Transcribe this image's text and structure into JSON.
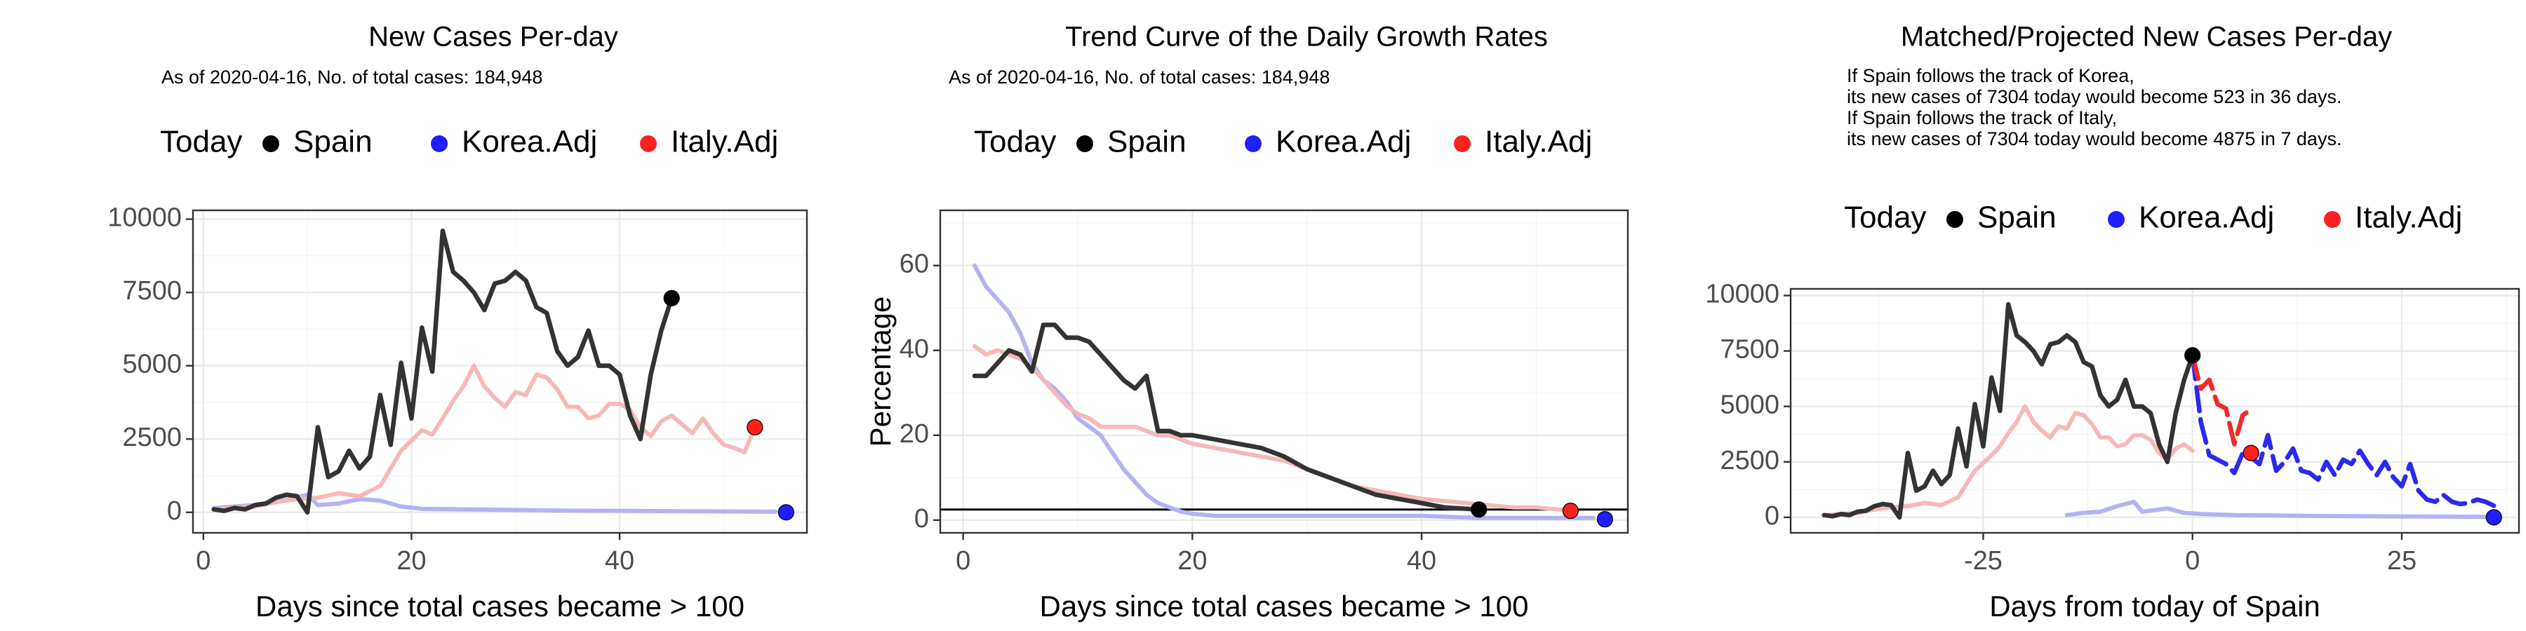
{
  "colors": {
    "spain": "#333333",
    "korea": "#2a2aef",
    "italy": "#ef2a2a",
    "korea_faint": "#b3b3f4",
    "italy_faint": "#f6b8b8",
    "korea_dot": "#1f1fff",
    "italy_dot": "#ff2020"
  },
  "legend": {
    "title": "Today",
    "items": [
      "Spain",
      "Korea.Adj",
      "Italy.Adj"
    ]
  },
  "chart_data": [
    {
      "type": "line",
      "title": "New Cases Per-day",
      "subtitle": "As of 2020-04-16, No. of total cases: 184,948",
      "xlabel": "Days since total cases became > 100",
      "ylabel": "",
      "xlim": [
        -1,
        58
      ],
      "ylim": [
        -700,
        10300
      ],
      "xticks": [
        0,
        20,
        40
      ],
      "yticks": [
        0,
        2500,
        5000,
        7500,
        10000
      ],
      "ytick_labels": [
        "0",
        "2500",
        "5000",
        "7500",
        "10000"
      ],
      "grid": true,
      "legend_position": "top",
      "series": [
        {
          "name": "Korea.Adj",
          "style": "faint",
          "x": [
            1,
            3,
            5,
            7,
            9,
            10,
            11,
            13,
            15,
            17,
            19,
            21,
            25,
            30,
            35,
            40,
            45,
            50,
            55
          ],
          "y": [
            150,
            200,
            250,
            350,
            500,
            600,
            250,
            300,
            450,
            400,
            200,
            120,
            100,
            80,
            60,
            50,
            40,
            30,
            20
          ]
        },
        {
          "name": "Italy.Adj",
          "style": "faint",
          "x": [
            1,
            3,
            5,
            7,
            9,
            11,
            13,
            15,
            17,
            19,
            21,
            22,
            23,
            24,
            25,
            26,
            27,
            28,
            29,
            30,
            31,
            32,
            33,
            34,
            35,
            36,
            37,
            38,
            39,
            40,
            41,
            42,
            43,
            44,
            45,
            46,
            47,
            48,
            49,
            50,
            51,
            52,
            53
          ],
          "y": [
            100,
            150,
            200,
            350,
            450,
            500,
            650,
            550,
            900,
            2100,
            2800,
            2650,
            3200,
            3800,
            4300,
            5000,
            4300,
            3900,
            3600,
            4100,
            4000,
            4700,
            4600,
            4200,
            3600,
            3600,
            3200,
            3300,
            3700,
            3700,
            3500,
            2900,
            2600,
            3100,
            3300,
            3000,
            2700,
            3200,
            2700,
            2300,
            2200,
            2050,
            2900
          ]
        },
        {
          "name": "Spain",
          "style": "solid",
          "x": [
            1,
            2,
            3,
            4,
            5,
            6,
            7,
            8,
            9,
            10,
            11,
            12,
            13,
            14,
            15,
            16,
            17,
            18,
            19,
            20,
            21,
            22,
            23,
            24,
            25,
            26,
            27,
            28,
            29,
            30,
            31,
            32,
            33,
            34,
            35,
            36,
            37,
            38,
            39,
            40,
            41,
            42,
            43,
            44,
            45
          ],
          "y": [
            100,
            50,
            150,
            100,
            250,
            300,
            500,
            600,
            550,
            0,
            2900,
            1200,
            1400,
            2100,
            1500,
            1900,
            4000,
            2300,
            5100,
            3200,
            6300,
            4800,
            9600,
            8200,
            7900,
            7500,
            6900,
            7800,
            7900,
            8200,
            7900,
            7000,
            6800,
            5500,
            5000,
            5300,
            6200,
            5000,
            5000,
            4700,
            3300,
            2500,
            4700,
            6200,
            7300
          ]
        }
      ],
      "today_points": [
        {
          "name": "Spain",
          "x": 45,
          "y": 7304
        },
        {
          "name": "Korea.Adj",
          "x": 56,
          "y": 0
        },
        {
          "name": "Italy.Adj",
          "x": 53,
          "y": 2900
        }
      ]
    },
    {
      "type": "line",
      "title": "Trend Curve of the Daily Growth Rates",
      "subtitle": "As of 2020-04-16, No. of total cases: 184,948",
      "xlabel": "Days since total cases became > 100",
      "ylabel": "Percentage",
      "xlim": [
        -2,
        58
      ],
      "ylim": [
        -3,
        73
      ],
      "xticks": [
        0,
        20,
        40
      ],
      "yticks": [
        0,
        20,
        40,
        60
      ],
      "ytick_labels": [
        "0",
        "20",
        "40",
        "60"
      ],
      "grid": true,
      "legend_position": "top",
      "reference_line_y": 2.5,
      "series": [
        {
          "name": "Korea.Adj",
          "style": "faint",
          "x": [
            1,
            2,
            3,
            4,
            5,
            6,
            7,
            8,
            9,
            10,
            11,
            12,
            13,
            14,
            15,
            16,
            17,
            18,
            19,
            20,
            22,
            25,
            30,
            35,
            40,
            45,
            50,
            55
          ],
          "y": [
            60,
            55,
            52,
            49,
            44,
            37,
            33,
            31,
            28,
            24,
            22,
            20,
            16,
            12,
            9,
            6,
            4,
            3,
            2,
            1.5,
            1,
            1,
            1,
            1,
            1,
            0.5,
            0.5,
            0.5
          ]
        },
        {
          "name": "Italy.Adj",
          "style": "faint",
          "x": [
            1,
            2,
            3,
            4,
            5,
            6,
            7,
            8,
            9,
            10,
            11,
            12,
            13,
            14,
            15,
            16,
            17,
            18,
            19,
            20,
            22,
            24,
            26,
            28,
            30,
            32,
            34,
            36,
            38,
            40,
            42,
            44,
            46,
            48,
            50,
            52,
            53
          ],
          "y": [
            41,
            39,
            40,
            39,
            38,
            36,
            33,
            30,
            27,
            25,
            24,
            22,
            22,
            22,
            22,
            21,
            20,
            20,
            19,
            18,
            17,
            16,
            15,
            14,
            12,
            10,
            8,
            7,
            6,
            5,
            4.5,
            4,
            3.5,
            3,
            3,
            2.5,
            2.3
          ]
        },
        {
          "name": "Spain",
          "style": "solid",
          "x": [
            1,
            2,
            3,
            4,
            5,
            6,
            7,
            8,
            9,
            10,
            11,
            12,
            13,
            14,
            15,
            16,
            17,
            18,
            19,
            20,
            22,
            24,
            26,
            28,
            30,
            32,
            34,
            36,
            38,
            40,
            42,
            45
          ],
          "y": [
            34,
            34,
            37,
            40,
            39,
            35,
            46,
            46,
            43,
            43,
            42,
            39,
            36,
            33,
            31,
            34,
            21,
            21,
            20,
            20,
            19,
            18,
            17,
            15,
            12,
            10,
            8,
            6,
            5,
            4,
            3,
            2.5
          ]
        }
      ],
      "today_points": [
        {
          "name": "Spain",
          "x": 45,
          "y": 2.5
        },
        {
          "name": "Korea.Adj",
          "x": 56,
          "y": 0.2
        },
        {
          "name": "Italy.Adj",
          "x": 53,
          "y": 2.2
        }
      ]
    },
    {
      "type": "line",
      "title": "Matched/Projected New Cases Per-day",
      "subtitle_lines": [
        "If Spain follows the track of Korea,",
        "its new cases of 7304 today would become 523 in 36 days.",
        "If Spain follows the track of Italy,",
        "its new cases of 7304 today would become 4875 in 7 days."
      ],
      "xlabel": "Days from today of Spain",
      "ylabel": "",
      "xlim": [
        -48,
        39
      ],
      "ylim": [
        -700,
        10300
      ],
      "xticks": [
        -50,
        -25,
        0,
        25
      ],
      "yticks": [
        0,
        2500,
        5000,
        7500,
        10000
      ],
      "ytick_labels": [
        "0",
        "2500",
        "5000",
        "7500",
        "10000"
      ],
      "grid": true,
      "legend_position": "top",
      "series": [
        {
          "name": "Korea.Adj",
          "style": "faint",
          "x": [
            -15,
            -13,
            -11,
            -9,
            -7,
            -6,
            -5,
            -3,
            -1,
            1,
            5,
            10,
            15,
            20,
            25,
            30,
            35
          ],
          "y": [
            100,
            200,
            250,
            500,
            700,
            250,
            300,
            400,
            200,
            150,
            100,
            80,
            60,
            50,
            40,
            30,
            20
          ]
        },
        {
          "name": "Italy.Adj",
          "style": "faint",
          "x": [
            -44,
            -42,
            -40,
            -38,
            -36,
            -34,
            -32,
            -30,
            -28,
            -26,
            -24,
            -23,
            -22,
            -21,
            -20,
            -19,
            -18,
            -17,
            -16,
            -15,
            -14,
            -13,
            -12,
            -11,
            -10,
            -9,
            -8,
            -7,
            -6,
            -5,
            -4,
            -3,
            -2,
            -1,
            0
          ],
          "y": [
            100,
            150,
            200,
            350,
            450,
            500,
            650,
            550,
            900,
            2100,
            2800,
            3200,
            3800,
            4300,
            5000,
            4300,
            3900,
            3600,
            4100,
            4000,
            4700,
            4600,
            4200,
            3600,
            3600,
            3200,
            3300,
            3700,
            3700,
            3500,
            2900,
            2600,
            3100,
            3300,
            3000
          ]
        },
        {
          "name": "Spain",
          "style": "solid",
          "x": [
            -44,
            -43,
            -42,
            -41,
            -40,
            -39,
            -38,
            -37,
            -36,
            -35,
            -34,
            -33,
            -32,
            -31,
            -30,
            -29,
            -28,
            -27,
            -26,
            -25,
            -24,
            -23,
            -22,
            -21,
            -20,
            -19,
            -18,
            -17,
            -16,
            -15,
            -14,
            -13,
            -12,
            -11,
            -10,
            -9,
            -8,
            -7,
            -6,
            -5,
            -4,
            -3,
            -2,
            -1,
            0
          ],
          "y": [
            100,
            50,
            150,
            100,
            250,
            300,
            500,
            600,
            550,
            0,
            2900,
            1200,
            1400,
            2100,
            1500,
            1900,
            4000,
            2300,
            5100,
            3200,
            6300,
            4800,
            9600,
            8200,
            7900,
            7500,
            6900,
            7800,
            7900,
            8200,
            7900,
            7000,
            6800,
            5500,
            5000,
            5300,
            6200,
            5000,
            5000,
            4700,
            3300,
            2500,
            4700,
            6200,
            7300
          ]
        },
        {
          "name": "Korea.Adj",
          "style": "dashed",
          "x": [
            0,
            1,
            2,
            3,
            4,
            5,
            6,
            7,
            8,
            9,
            10,
            11,
            12,
            13,
            14,
            15,
            16,
            17,
            18,
            19,
            20,
            21,
            22,
            23,
            24,
            25,
            26,
            27,
            28,
            29,
            30,
            31,
            32,
            33,
            34,
            35,
            36
          ],
          "y": [
            7300,
            4300,
            2800,
            2600,
            2400,
            2000,
            2900,
            2700,
            2400,
            3700,
            2100,
            2500,
            3100,
            2100,
            2000,
            1700,
            2500,
            1900,
            2600,
            2400,
            3000,
            2400,
            1900,
            2500,
            1800,
            1400,
            2400,
            1200,
            800,
            700,
            1000,
            700,
            600,
            650,
            800,
            700,
            523
          ]
        },
        {
          "name": "Italy.Adj",
          "style": "dashed",
          "x": [
            0,
            1,
            2,
            3,
            4,
            5,
            6,
            7
          ],
          "y": [
            7300,
            5800,
            6200,
            5100,
            4900,
            3300,
            4600,
            4875
          ]
        }
      ],
      "today_points": [
        {
          "name": "Spain",
          "x": 0,
          "y": 7304
        },
        {
          "name": "Korea.Adj",
          "x": 36,
          "y": 0
        },
        {
          "name": "Italy.Adj",
          "x": 7,
          "y": 2900
        }
      ]
    }
  ]
}
